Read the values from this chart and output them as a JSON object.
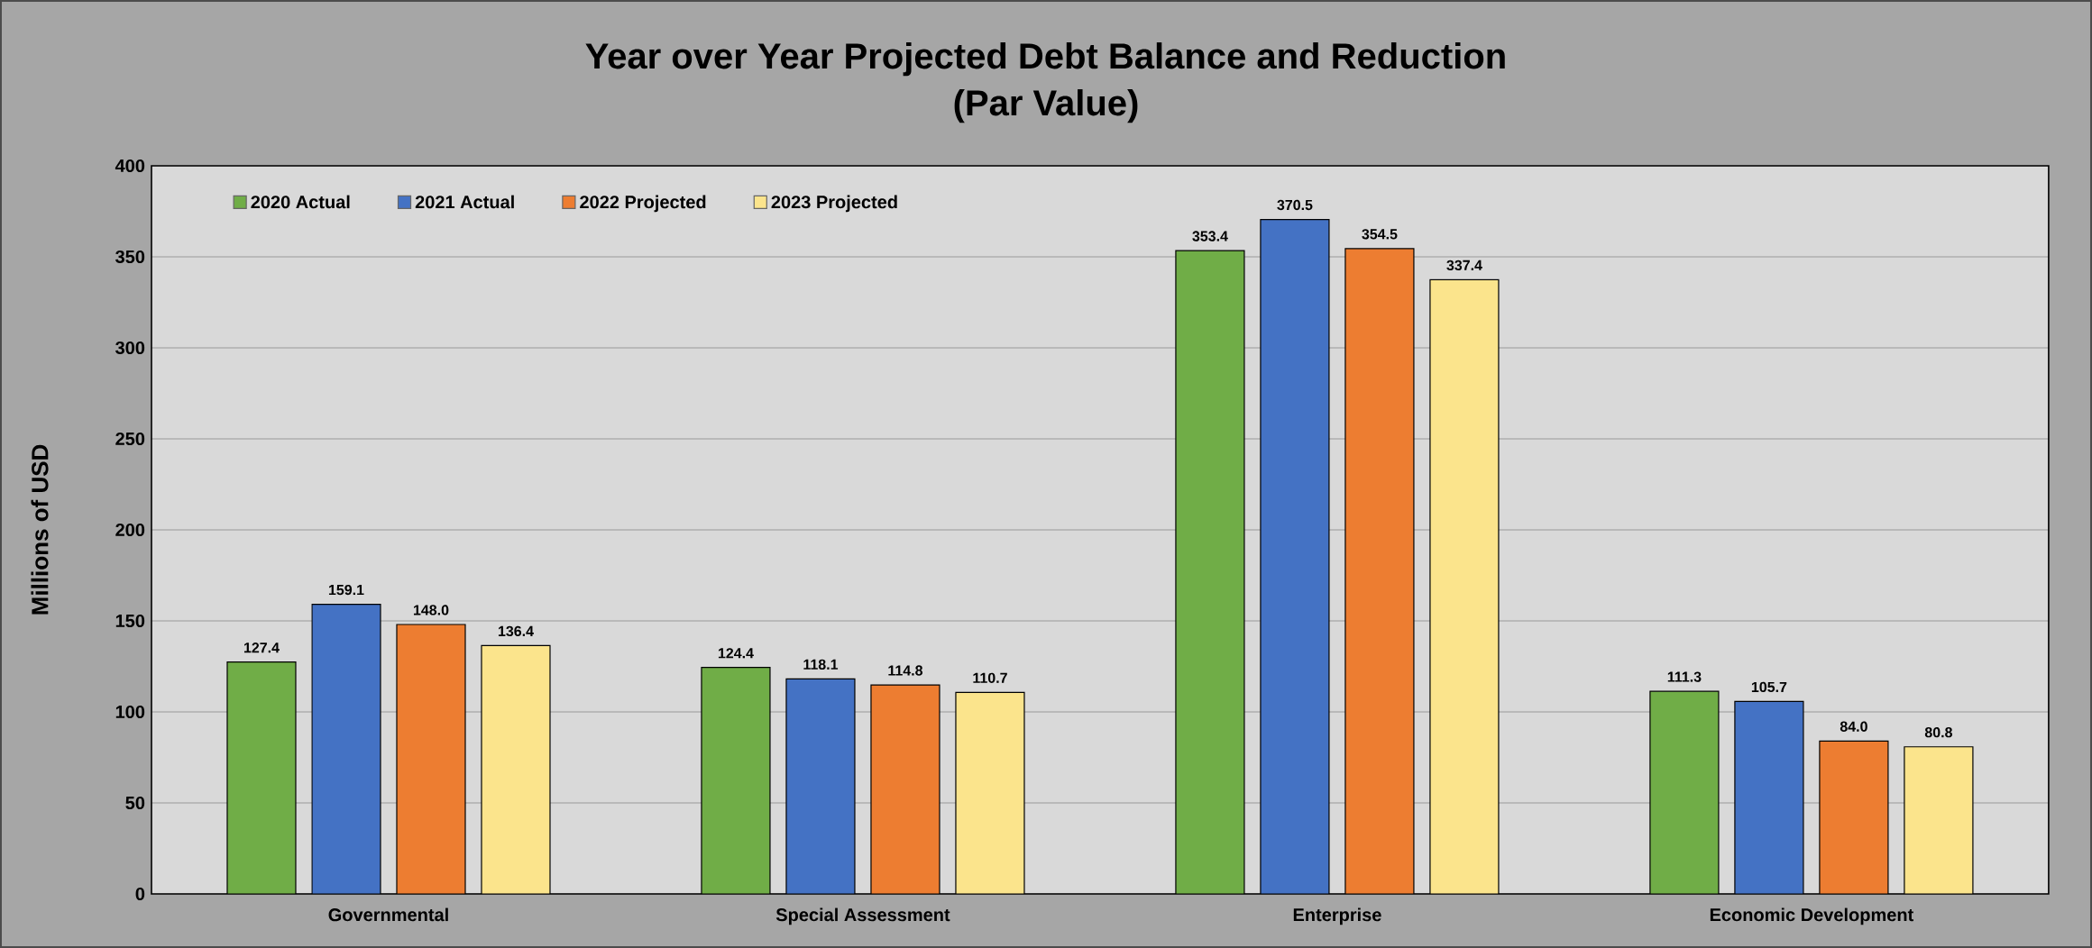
{
  "chart_data": {
    "type": "bar",
    "title": "Year over Year Projected Debt Balance and Reduction",
    "subtitle": "(Par Value)",
    "ylabel": "Millions  of  USD",
    "categories": [
      "Governmental",
      "Special Assessment",
      "Enterprise",
      "Economic Development"
    ],
    "series": [
      {
        "name": "2020 Actual",
        "color": "#70ad47",
        "values": [
          127.4,
          124.4,
          353.4,
          111.3
        ],
        "value_labels": [
          "127.4",
          "124.4",
          "353.4",
          "111.3"
        ]
      },
      {
        "name": "2021 Actual",
        "color": "#4472c4",
        "values": [
          159.1,
          118.1,
          370.5,
          105.7
        ],
        "value_labels": [
          "159.1",
          "118.1",
          "370.5",
          "105.7"
        ]
      },
      {
        "name": "2022 Projected",
        "color": "#ed7d31",
        "values": [
          148.0,
          114.8,
          354.5,
          84.0
        ],
        "value_labels": [
          "148.0",
          "114.8",
          "354.5",
          "84.0"
        ]
      },
      {
        "name": "2023 Projected",
        "color": "#fbe48c",
        "values": [
          136.4,
          110.7,
          337.4,
          80.8
        ],
        "value_labels": [
          "136.4",
          "110.7",
          "337.4",
          "80.8"
        ]
      }
    ],
    "ylim": [
      0,
      400
    ],
    "yticks": [
      0,
      50,
      100,
      150,
      200,
      250,
      300,
      350,
      400
    ],
    "grid": "y",
    "legend": "top left"
  }
}
